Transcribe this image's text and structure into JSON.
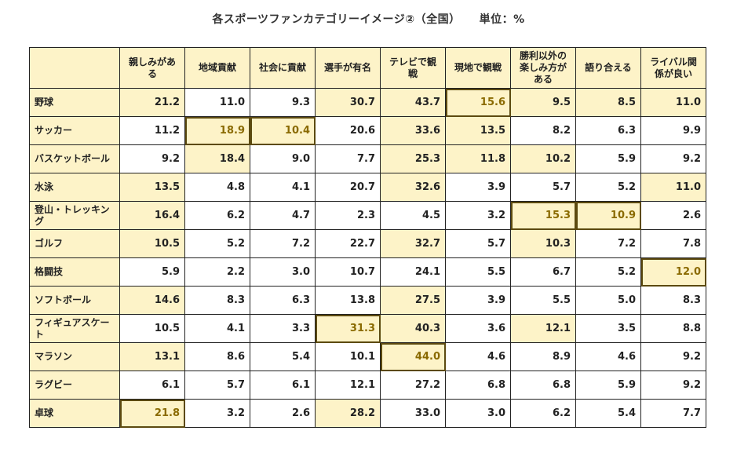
{
  "chart_data": {
    "type": "table",
    "title": "各スポーツファンカテゴリーイメージ②（全国）",
    "unit": "単位：%",
    "columns": [
      "親しみがある",
      "地域貢献",
      "社会に貢献",
      "選手が有名",
      "テレビで観戦",
      "現地で観戦",
      "勝利以外の楽しみ方がある",
      "語り合える",
      "ライバル関係が良い"
    ],
    "column_lines": [
      [
        "親しみがある"
      ],
      [
        "地域貢献"
      ],
      [
        "社会に貢献"
      ],
      [
        "選手が有名"
      ],
      [
        "テレビで観戦"
      ],
      [
        "現地で観戦"
      ],
      [
        "勝利以外の",
        "楽しみ方が",
        "ある"
      ],
      [
        "語り合える"
      ],
      [
        "ライバル関",
        "係が良い"
      ]
    ],
    "rows": [
      {
        "name": "野球",
        "values": [
          "21.2",
          "11.0",
          "9.3",
          "30.7",
          "43.7",
          "15.6",
          "9.5",
          "8.5",
          "11.0"
        ]
      },
      {
        "name": "サッカー",
        "values": [
          "11.2",
          "18.9",
          "10.4",
          "20.6",
          "33.6",
          "13.5",
          "8.2",
          "6.3",
          "9.9"
        ]
      },
      {
        "name": "バスケットボール",
        "values": [
          "9.2",
          "18.4",
          "9.0",
          "7.7",
          "25.3",
          "11.8",
          "10.2",
          "5.9",
          "9.2"
        ]
      },
      {
        "name": "水泳",
        "values": [
          "13.5",
          "4.8",
          "4.1",
          "20.7",
          "32.6",
          "3.9",
          "5.7",
          "5.2",
          "11.0"
        ]
      },
      {
        "name": "登山・トレッキング",
        "values": [
          "16.4",
          "6.2",
          "4.7",
          "2.3",
          "4.5",
          "3.2",
          "15.3",
          "10.9",
          "2.6"
        ]
      },
      {
        "name": "ゴルフ",
        "values": [
          "10.5",
          "5.2",
          "7.2",
          "22.7",
          "32.7",
          "5.7",
          "10.3",
          "7.2",
          "7.8"
        ]
      },
      {
        "name": "格闘技",
        "values": [
          "5.9",
          "2.2",
          "3.0",
          "10.7",
          "24.1",
          "5.5",
          "6.7",
          "5.2",
          "12.0"
        ]
      },
      {
        "name": "ソフトボール",
        "values": [
          "14.6",
          "8.3",
          "6.3",
          "13.8",
          "27.5",
          "3.9",
          "5.5",
          "5.0",
          "8.3"
        ]
      },
      {
        "name": "フィギュアスケート",
        "values": [
          "10.5",
          "4.1",
          "3.3",
          "31.3",
          "40.3",
          "3.6",
          "12.1",
          "3.5",
          "8.8"
        ]
      },
      {
        "name": "マラソン",
        "values": [
          "13.1",
          "8.6",
          "5.4",
          "10.1",
          "44.0",
          "4.6",
          "8.9",
          "4.6",
          "9.2"
        ]
      },
      {
        "name": "ラグビー",
        "values": [
          "6.1",
          "5.7",
          "6.1",
          "12.1",
          "27.2",
          "6.8",
          "6.8",
          "5.9",
          "9.2"
        ]
      },
      {
        "name": "卓球",
        "values": [
          "21.8",
          "3.2",
          "2.6",
          "28.2",
          "33.0",
          "3.0",
          "6.2",
          "5.4",
          "7.7"
        ]
      }
    ],
    "shaded_cells": [
      [
        0,
        0
      ],
      [
        0,
        3
      ],
      [
        0,
        4
      ],
      [
        0,
        5
      ],
      [
        0,
        6
      ],
      [
        0,
        7
      ],
      [
        0,
        8
      ],
      [
        1,
        1
      ],
      [
        1,
        2
      ],
      [
        1,
        4
      ],
      [
        1,
        5
      ],
      [
        2,
        1
      ],
      [
        2,
        4
      ],
      [
        2,
        5
      ],
      [
        2,
        6
      ],
      [
        3,
        0
      ],
      [
        3,
        4
      ],
      [
        3,
        8
      ],
      [
        4,
        0
      ],
      [
        4,
        6
      ],
      [
        4,
        7
      ],
      [
        5,
        0
      ],
      [
        5,
        4
      ],
      [
        5,
        6
      ],
      [
        6,
        8
      ],
      [
        7,
        0
      ],
      [
        7,
        4
      ],
      [
        8,
        3
      ],
      [
        8,
        4
      ],
      [
        8,
        6
      ],
      [
        9,
        0
      ],
      [
        9,
        4
      ],
      [
        11,
        0
      ],
      [
        11,
        3
      ]
    ],
    "boxed_cells": [
      [
        0,
        5
      ],
      [
        1,
        1
      ],
      [
        1,
        2
      ],
      [
        4,
        6
      ],
      [
        4,
        7
      ],
      [
        6,
        8
      ],
      [
        8,
        3
      ],
      [
        9,
        4
      ],
      [
        11,
        0
      ]
    ],
    "colors": {
      "highlight": "#fdf3c8",
      "boxed_text": "#8a6a00",
      "box_border": "#5c4a10",
      "grid": "#222222"
    }
  }
}
